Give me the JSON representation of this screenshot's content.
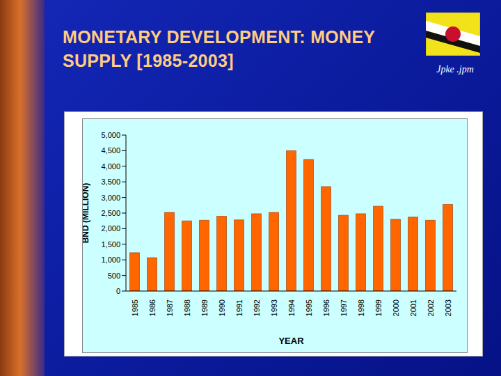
{
  "chart_data": {
    "type": "bar",
    "title": "MONETARY DEVELOPMENT: MONEY SUPPLY [1985-2003]",
    "annotations": [
      "Jpke .jpm"
    ],
    "x_label": "YEAR",
    "y_label": "BND (MILLION)",
    "categories": [
      "1985",
      "1986",
      "1987",
      "1988",
      "1989",
      "1990",
      "1991",
      "1992",
      "1993",
      "1994",
      "1995",
      "1996",
      "1997",
      "1998",
      "1999",
      "2000",
      "2001",
      "2002",
      "2003"
    ],
    "values": [
      1230,
      1070,
      2520,
      2250,
      2270,
      2400,
      2280,
      2480,
      2520,
      4500,
      4220,
      3350,
      2430,
      2480,
      2720,
      2300,
      2370,
      2270,
      2780
    ],
    "color": "#ff6600",
    "ylim": [
      0,
      5000
    ],
    "yticks": [
      0,
      500,
      {
        "value": 1000,
        "label": "1,000"
      },
      {
        "value": 1500,
        "label": "1,500"
      },
      {
        "value": 2000,
        "label": "2,000"
      },
      {
        "value": 2500,
        "label": "2,500"
      },
      {
        "value": 3000,
        "label": "3,000"
      },
      {
        "value": 3500,
        "label": "3,500"
      },
      {
        "value": 4000,
        "label": "4,000"
      },
      {
        "value": 4500,
        "label": "4,500"
      },
      {
        "value": 5000,
        "label": "5,000"
      }
    ],
    "grid": false
  }
}
